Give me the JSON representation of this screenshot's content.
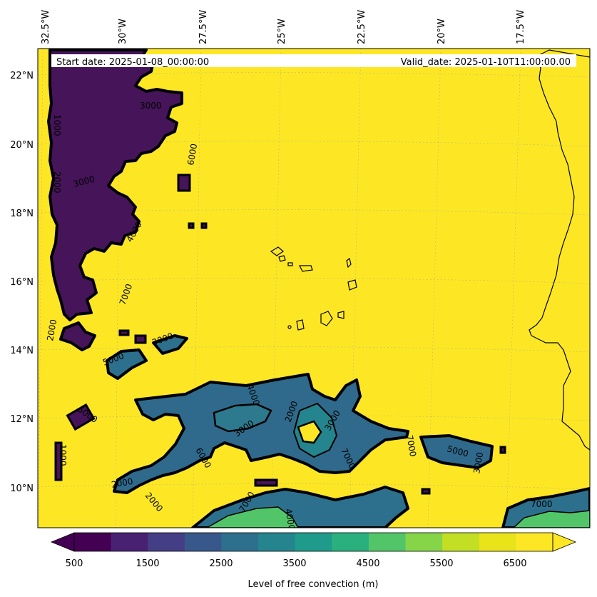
{
  "header": {
    "start_date": "Start date: 2025-01-08_00:00:00",
    "valid_date": "Valid_date: 2025-01-10T11:00:00.00"
  },
  "map": {
    "lon_labels": [
      "32.5°W",
      "30°W",
      "27.5°W",
      "25°W",
      "22.5°W",
      "20°W",
      "17.5°W"
    ],
    "lat_labels": [
      "22°N",
      "20°N",
      "18°N",
      "16°N",
      "14°N",
      "12°N",
      "10°N"
    ],
    "contour_labels": [
      "3000",
      "3000",
      "6000",
      "7000",
      "4000",
      "2000",
      "5000",
      "3000",
      "2000",
      "7000",
      "4000",
      "7000",
      "5000",
      "3000",
      "2000",
      "7000",
      "5000",
      "2000",
      "3000",
      "6000",
      "4000",
      "3000",
      "1000",
      "2000",
      "1000",
      "7000"
    ]
  },
  "colorbar": {
    "ticks": [
      "500",
      "1500",
      "2500",
      "3500",
      "4500",
      "5500",
      "6500"
    ],
    "label": "Level of free convection (m)",
    "colors": [
      "#440154",
      "#482173",
      "#433e85",
      "#38588c",
      "#2d708e",
      "#25858e",
      "#1e9b8a",
      "#2ab07f",
      "#52c569",
      "#86d549",
      "#c2df23",
      "#e8e419",
      "#fde725"
    ]
  }
}
